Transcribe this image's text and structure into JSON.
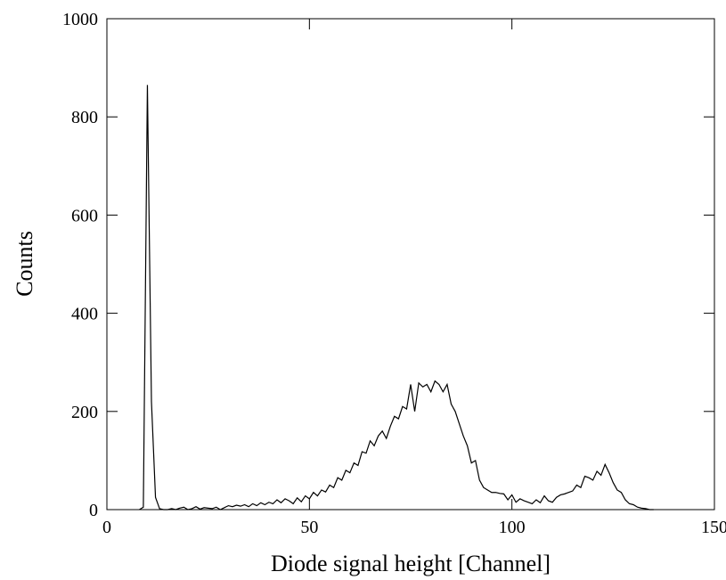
{
  "chart_data": {
    "type": "line",
    "x_label": "Diode signal height [Channel]",
    "y_label": "Counts",
    "xlim": [
      0,
      150
    ],
    "xticks": [
      0,
      50,
      100,
      150
    ],
    "ylim": [
      0,
      1000
    ],
    "yticks": [
      0,
      200,
      400,
      600,
      800,
      1000
    ],
    "color": "#000000",
    "x": [
      8,
      9,
      10,
      11,
      12,
      13,
      14,
      15,
      16,
      17,
      18,
      19,
      20,
      21,
      22,
      23,
      24,
      25,
      26,
      27,
      28,
      29,
      30,
      31,
      32,
      33,
      34,
      35,
      36,
      37,
      38,
      39,
      40,
      41,
      42,
      43,
      44,
      45,
      46,
      47,
      48,
      49,
      50,
      51,
      52,
      53,
      54,
      55,
      56,
      57,
      58,
      59,
      60,
      61,
      62,
      63,
      64,
      65,
      66,
      67,
      68,
      69,
      70,
      71,
      72,
      73,
      74,
      75,
      76,
      77,
      78,
      79,
      80,
      81,
      82,
      83,
      84,
      85,
      86,
      87,
      88,
      89,
      90,
      91,
      92,
      93,
      94,
      95,
      96,
      97,
      98,
      99,
      100,
      101,
      102,
      103,
      104,
      105,
      106,
      107,
      108,
      109,
      110,
      111,
      112,
      113,
      114,
      115,
      116,
      117,
      118,
      119,
      120,
      121,
      122,
      123,
      124,
      125,
      126,
      127,
      128,
      129,
      130,
      131,
      132,
      133,
      134,
      135
    ],
    "values": [
      0,
      5,
      865,
      220,
      25,
      2,
      0,
      0,
      2,
      0,
      3,
      5,
      0,
      2,
      6,
      1,
      4,
      3,
      2,
      5,
      0,
      4,
      8,
      6,
      9,
      7,
      10,
      6,
      12,
      8,
      14,
      10,
      15,
      12,
      20,
      14,
      22,
      18,
      12,
      24,
      16,
      28,
      22,
      35,
      28,
      40,
      36,
      50,
      45,
      65,
      60,
      80,
      75,
      95,
      90,
      118,
      115,
      140,
      130,
      150,
      160,
      145,
      170,
      190,
      185,
      210,
      205,
      255,
      200,
      258,
      250,
      255,
      240,
      262,
      255,
      240,
      255,
      215,
      200,
      175,
      150,
      130,
      95,
      100,
      60,
      45,
      40,
      35,
      35,
      33,
      32,
      20,
      30,
      15,
      22,
      18,
      15,
      12,
      20,
      14,
      28,
      18,
      15,
      25,
      30,
      32,
      35,
      38,
      50,
      45,
      68,
      65,
      60,
      78,
      70,
      92,
      75,
      55,
      40,
      35,
      20,
      12,
      10,
      5,
      3,
      2,
      0,
      0
    ]
  }
}
